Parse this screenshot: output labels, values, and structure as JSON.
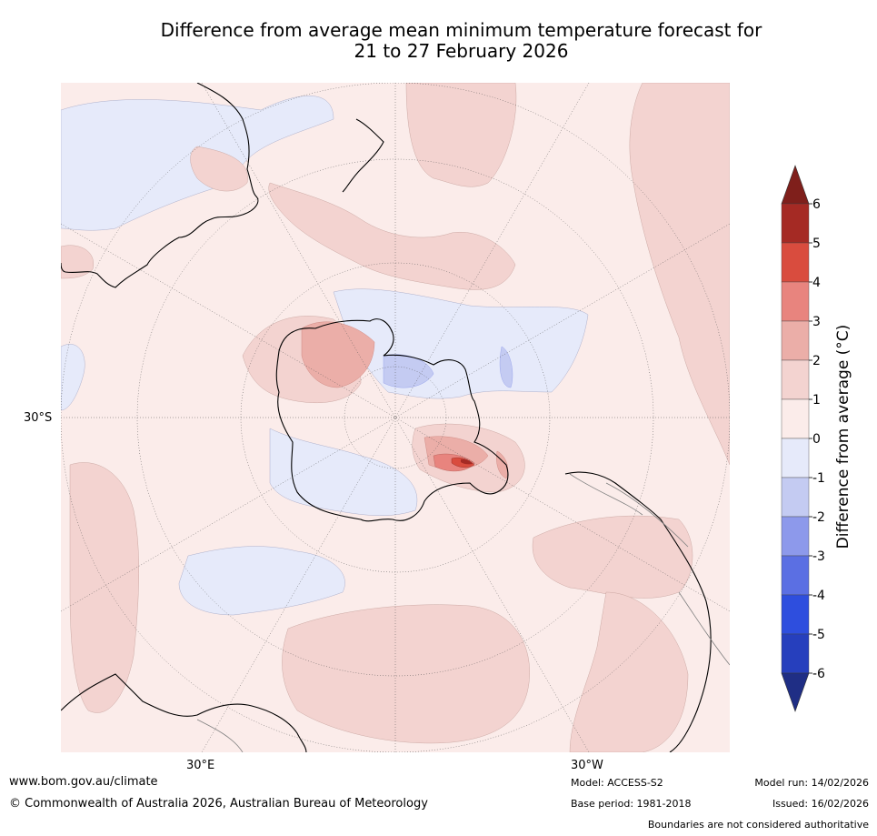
{
  "title": {
    "line1": "Difference from average mean minimum temperature forecast for",
    "line2": "21 to 27 February 2026"
  },
  "map": {
    "lat_label": "30°S",
    "lon_label_left": "30°E",
    "lon_label_right": "30°W",
    "colors": {
      "ocean_base": "#fbecea",
      "warm_1": "#f3d3d0",
      "warm_2": "#ebaea8",
      "warm_3": "#e8847e",
      "warm_4": "#d94c3e",
      "warm_5": "#b02a24",
      "warm_6": "#7f1f1b",
      "cool_1": "#e6eafa",
      "cool_2": "#c4cbf2",
      "coast": "#000000",
      "border": "#808080"
    }
  },
  "colorbar": {
    "label": "Difference from average (°C)",
    "ticks": [
      "6",
      "5",
      "4",
      "3",
      "2",
      "1",
      "0",
      "-1",
      "-2",
      "-3",
      "-4",
      "-5",
      "-6"
    ],
    "colors": [
      "#a52a24",
      "#d94c3e",
      "#e8847e",
      "#ebaea8",
      "#f3d3d0",
      "#fbecea",
      "#e6eafa",
      "#c4cbf2",
      "#8d99eb",
      "#5b6fe3",
      "#2e4ede",
      "#263fbd"
    ],
    "top_arrow_color": "#7f1f1b",
    "bottom_arrow_color": "#1f2e85"
  },
  "footer": {
    "website": "www.bom.gov.au/climate",
    "copyright": "© Commonwealth of Australia 2026, Australian Bureau of Meteorology",
    "model": "Model: ACCESS-S2",
    "base_period": "Base period: 1981-2018",
    "model_run": "Model run: 14/02/2026",
    "issued": "Issued: 16/02/2026",
    "disclaimer": "Boundaries are not considered authoritative"
  }
}
